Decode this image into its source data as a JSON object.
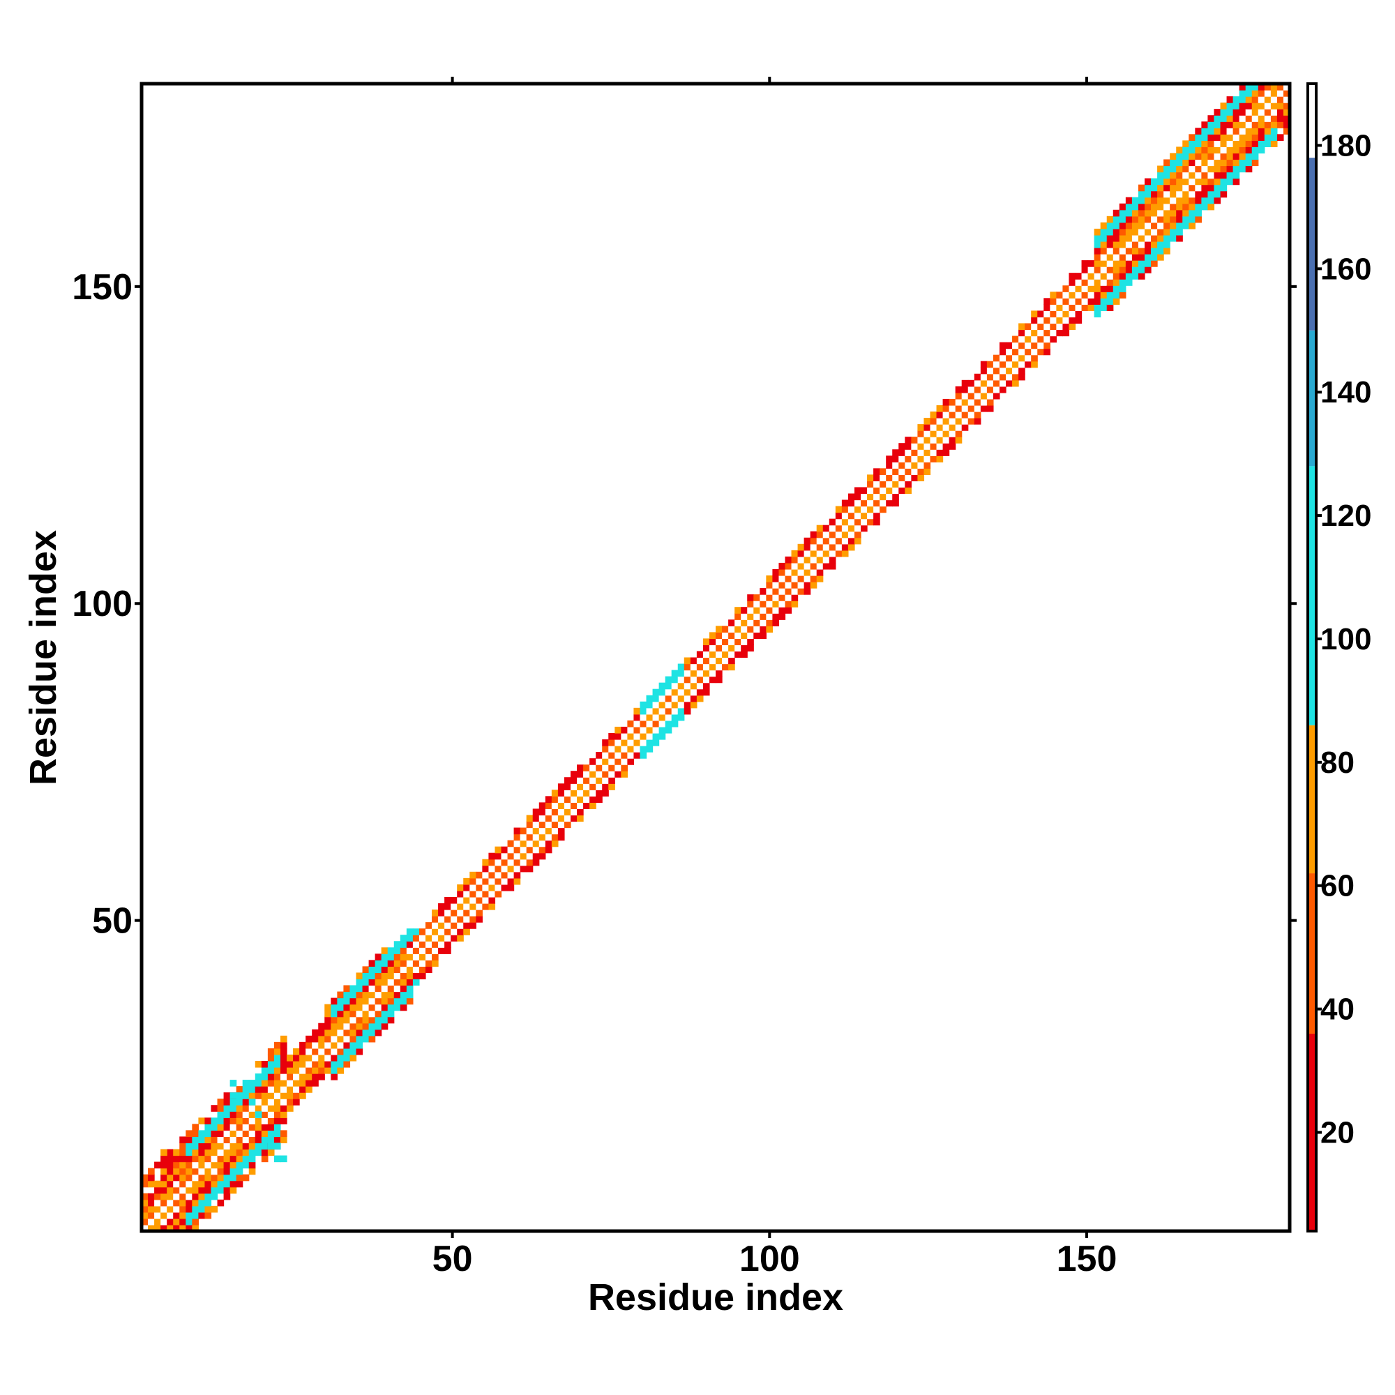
{
  "chart_data": {
    "type": "heatmap",
    "title": "",
    "xlabel": "Residue index",
    "ylabel": "Residue index",
    "xlim": [
      1,
      182
    ],
    "ylim": [
      1,
      182
    ],
    "x_ticks": [
      50,
      100,
      150
    ],
    "y_ticks": [
      50,
      100,
      150
    ],
    "x_tick_labels": [
      "50",
      "100",
      "150"
    ],
    "y_tick_labels": [
      "50",
      "100",
      "150"
    ],
    "n_residues": 182,
    "colorbar": {
      "range": [
        4,
        190
      ],
      "ticks": [
        20,
        40,
        60,
        80,
        100,
        120,
        140,
        160,
        180
      ],
      "tick_labels": [
        "20",
        "40",
        "60",
        "80",
        "100",
        "120",
        "140",
        "160",
        "180"
      ],
      "placement": "right",
      "color_bands": [
        {
          "from": 4,
          "to": 36,
          "color": "#e8000b"
        },
        {
          "from": 36,
          "to": 62,
          "color": "#ff5a00"
        },
        {
          "from": 62,
          "to": 86,
          "color": "#ff9d00"
        },
        {
          "from": 86,
          "to": 128,
          "color": "#1ee3e3"
        },
        {
          "from": 128,
          "to": 150,
          "color": "#29a9d1"
        },
        {
          "from": 150,
          "to": 178,
          "color": "#4a6fb0"
        },
        {
          "from": 178,
          "to": 190,
          "color": "#ffffff"
        }
      ]
    },
    "palette": {
      "red": "#e8000b",
      "orange_red": "#ff5a00",
      "orange": "#ff9d00",
      "cyan": "#1ee3e3",
      "diagonal": "#ffffff"
    },
    "contact_bands": [
      {
        "start": 1,
        "end": 24,
        "half_width": 8,
        "pattern": "mixed"
      },
      {
        "start": 24,
        "end": 30,
        "half_width": 4,
        "pattern": "coil"
      },
      {
        "start": 30,
        "end": 44,
        "half_width": 6,
        "pattern": "strand"
      },
      {
        "start": 44,
        "end": 152,
        "half_width": 4,
        "pattern": "helix"
      },
      {
        "start": 152,
        "end": 182,
        "half_width": 7,
        "pattern": "strand"
      }
    ],
    "cyan_flanks": [
      {
        "start": 8,
        "end": 22,
        "offset": 6
      },
      {
        "start": 31,
        "end": 44,
        "offset": 5
      },
      {
        "start": 80,
        "end": 86,
        "offset": 4
      },
      {
        "start": 152,
        "end": 180,
        "offset": 6
      }
    ],
    "grid": false,
    "legend": "none"
  }
}
